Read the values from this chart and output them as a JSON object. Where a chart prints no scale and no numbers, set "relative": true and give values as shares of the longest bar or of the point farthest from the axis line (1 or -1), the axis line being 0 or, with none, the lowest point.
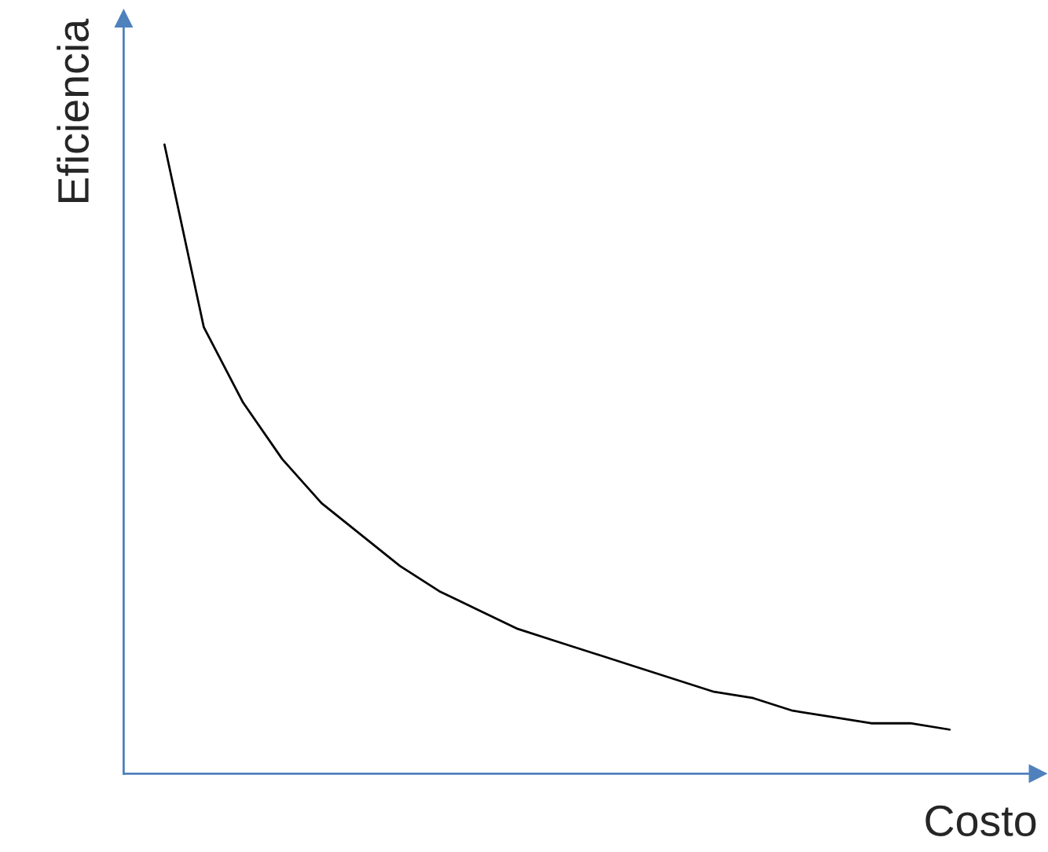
{
  "chart_data": {
    "type": "line",
    "relative": true,
    "xlabel": "Costo",
    "ylabel": "Eficiencia",
    "categories": [
      null,
      null,
      null,
      null,
      null,
      null,
      null,
      null,
      null,
      null,
      null,
      null,
      null,
      null,
      null,
      null,
      null,
      null,
      null,
      null,
      null
    ],
    "series": [
      {
        "color": "#000000",
        "values": [
          1.0,
          0.71,
          0.59,
          0.5,
          0.43,
          0.38,
          0.33,
          0.29,
          0.26,
          0.23,
          0.21,
          0.19,
          0.17,
          0.15,
          0.13,
          0.12,
          0.1,
          0.09,
          0.08,
          0.08,
          0.07
        ]
      }
    ],
    "marker": "none",
    "line_style": "solid",
    "legend": false,
    "tick_labels": false
  }
}
